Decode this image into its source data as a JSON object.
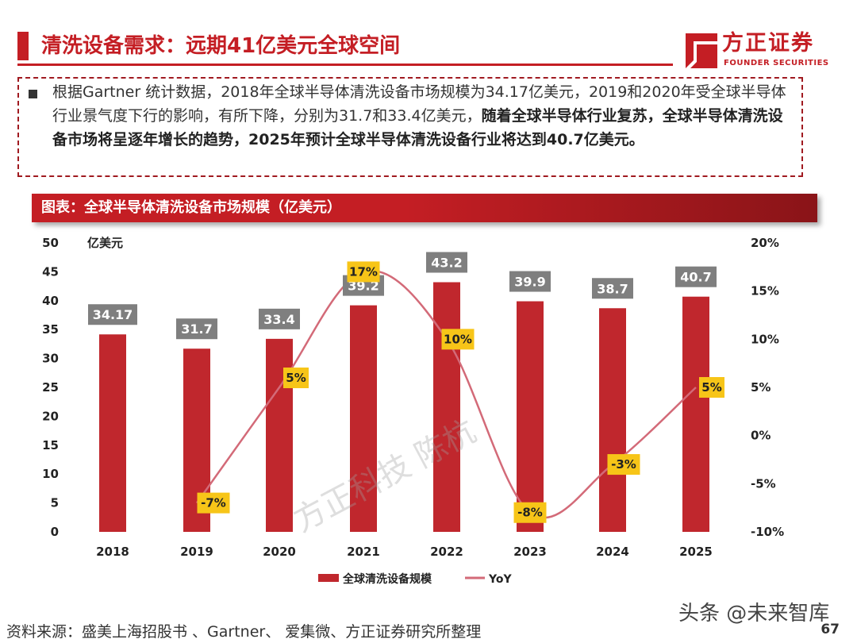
{
  "header": {
    "title": "清洗设备需求：远期41亿美元全球空间",
    "logo_cn": "方正证券",
    "logo_en": "FOUNDER SECURITIES"
  },
  "summary": {
    "text_normal": "根据Gartner 统计数据，2018年全球半导体清洗设备市场规模为34.17亿美元，2019和2020年受全球半导体行业景气度下行的影响，有所下降，分别为31.7和33.4亿美元，",
    "text_bold": "随着全球半导体行业复苏，全球半导体清洗设备市场将呈逐年增长的趋势，2025年预计全球半导体清洗设备行业将达到40.7亿美元。"
  },
  "chart_header": "图表：全球半导体清洗设备市场规模（亿美元）",
  "chart_data": {
    "type": "bar",
    "title": "全球半导体清洗设备市场规模（亿美元）",
    "categories": [
      "2018",
      "2019",
      "2020",
      "2021",
      "2022",
      "2023",
      "2024",
      "2025"
    ],
    "series": [
      {
        "name": "全球清洗设备规模",
        "type": "bar",
        "axis": "left",
        "values": [
          34.17,
          31.7,
          33.4,
          39.2,
          43.2,
          39.9,
          38.7,
          40.7
        ],
        "labels": [
          "34.17",
          "31.7",
          "33.4",
          "39.2",
          "43.2",
          "39.9",
          "38.7",
          "40.7"
        ]
      },
      {
        "name": "YoY",
        "type": "line",
        "axis": "right",
        "values": [
          null,
          -7,
          5,
          17,
          10,
          -8,
          -3,
          5
        ],
        "labels": [
          "",
          "-7%",
          "5%",
          "17%",
          "10%",
          "-8%",
          "-3%",
          "5%"
        ]
      }
    ],
    "ylabel": "亿美元",
    "ylim": [
      0,
      50
    ],
    "yticks": [
      "0",
      "5",
      "10",
      "15",
      "20",
      "25",
      "30",
      "35",
      "40",
      "45",
      "50"
    ],
    "y2lim": [
      -10,
      20
    ],
    "y2ticks": [
      "-10%",
      "-5%",
      "0%",
      "5%",
      "10%",
      "15%",
      "20%"
    ],
    "legend_position": "bottom"
  },
  "colors": {
    "brand_red": "#c41e24",
    "bar": "#c0272d",
    "line": "#d36a78",
    "yoy_label_bg": "#f7c518",
    "bar_label_bg": "#7f7f7f"
  },
  "footer": {
    "source": "资料来源：盛美上海招股书 、Gartner、 爱集微、方正证券研究所整理",
    "page": "67",
    "watermark": "方正科技 陈杭",
    "corner_mark": "头条 @未来智库"
  }
}
